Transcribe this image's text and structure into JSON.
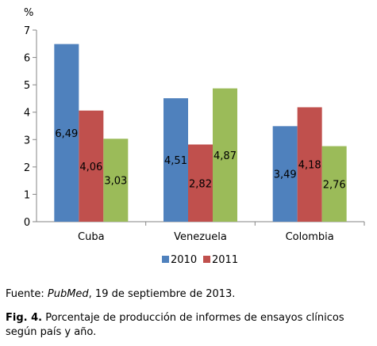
{
  "chart_data": {
    "type": "bar",
    "ylabel": "%",
    "ylim": [
      0,
      7
    ],
    "yticks": [
      "0",
      "1",
      "2",
      "3",
      "4",
      "5",
      "6",
      "7"
    ],
    "categories": [
      "Cuba",
      "Venezuela",
      "Colombia"
    ],
    "series": [
      {
        "name": "2010",
        "color": "#4f81bd",
        "values": [
          6.49,
          4.51,
          3.49
        ],
        "labels": [
          "6,49",
          "4,51",
          "3,49"
        ]
      },
      {
        "name": "2011",
        "color": "#c0504d",
        "values": [
          4.06,
          2.82,
          4.18
        ],
        "labels": [
          "4,06",
          "2,82",
          "4,18"
        ]
      },
      {
        "name": "",
        "color": "#9bbb59",
        "values": [
          3.03,
          4.87,
          2.76
        ],
        "labels": [
          "3,03",
          "4,87",
          "2,76"
        ]
      }
    ],
    "grid": false,
    "legend": "bottom"
  },
  "source": {
    "prefix": "Fuente: ",
    "italic": "PubMed",
    "suffix": ", 19 de septiembre de 2013."
  },
  "caption": {
    "label": "Fig. 4.",
    "text": " Porcentaje de producción de informes de ensayos clínicos según país y año."
  }
}
